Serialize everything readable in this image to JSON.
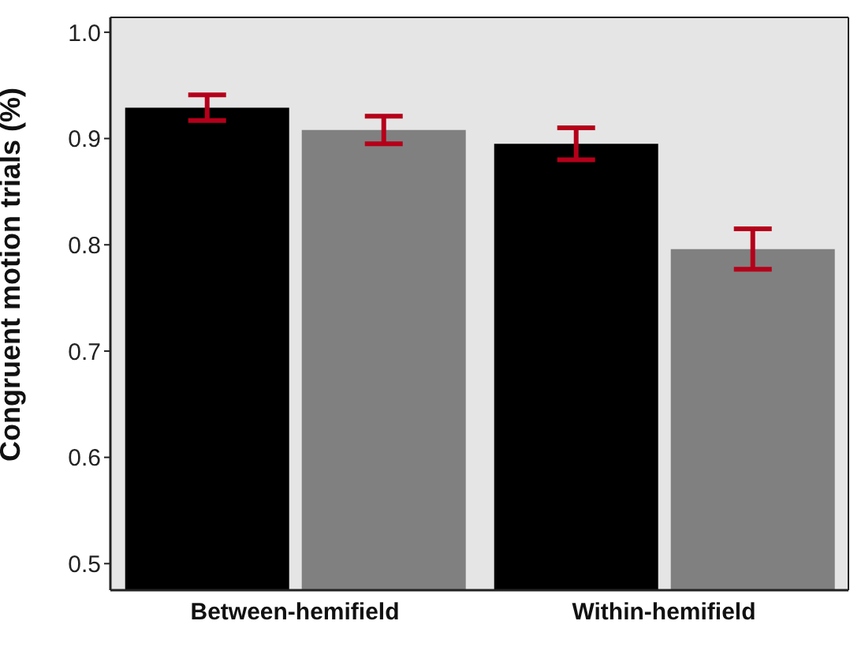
{
  "chart_data": {
    "type": "bar",
    "ylabel": "Congruent motion trials (%)",
    "categories": [
      "Between-hemifield",
      "Within-hemifield"
    ],
    "series": [
      {
        "color": "#000000",
        "values": [
          0.929,
          0.895
        ],
        "errors": [
          0.012,
          0.015
        ]
      },
      {
        "color": "#808080",
        "values": [
          0.908,
          0.796
        ],
        "errors": [
          0.013,
          0.019
        ]
      }
    ],
    "ylim": [
      0.475,
      1.014
    ],
    "yticks": [
      {
        "value": 0.5,
        "label": "0.5"
      },
      {
        "value": 0.6,
        "label": "0.6"
      },
      {
        "value": 0.7,
        "label": "0.7"
      },
      {
        "value": 0.8,
        "label": "0.8"
      },
      {
        "value": 0.9,
        "label": "0.9"
      },
      {
        "value": 1.0,
        "label": "1.0"
      }
    ],
    "grid": false,
    "legend": false
  }
}
